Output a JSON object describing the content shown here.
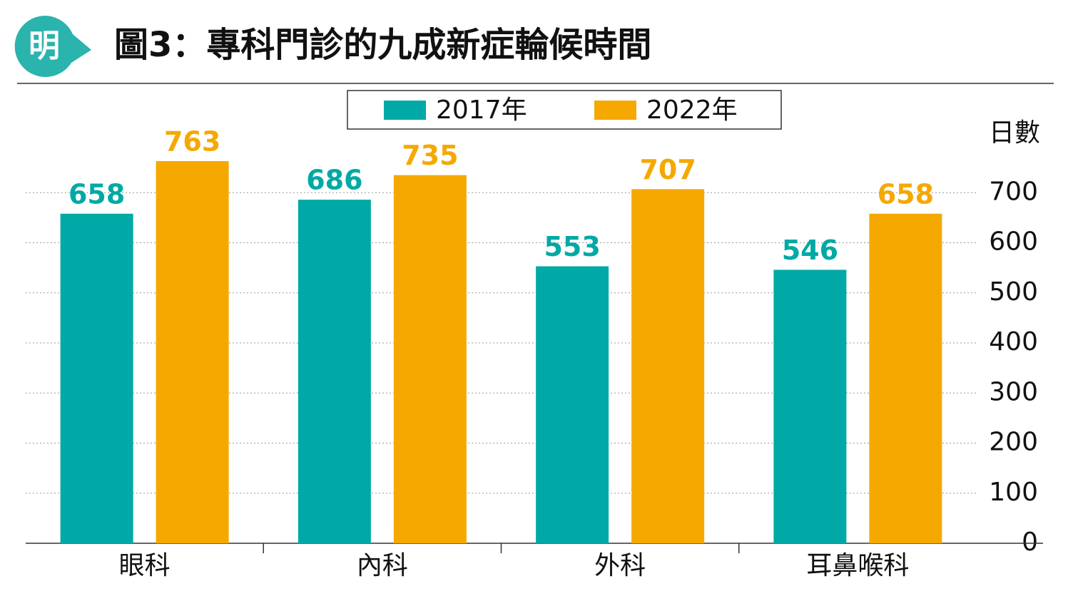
{
  "chart_data": {
    "type": "bar",
    "logo": "明",
    "title": "圖3：專科門診的九成新症輪候時間",
    "y_label": "日數",
    "categories": [
      "眼科",
      "內科",
      "外科",
      "耳鼻喉科"
    ],
    "series": [
      {
        "name": "2017年",
        "color": "#00a9a5",
        "values": [
          658,
          686,
          553,
          546
        ]
      },
      {
        "name": "2022年",
        "color": "#f5a800",
        "values": [
          763,
          735,
          707,
          658
        ]
      }
    ],
    "ylim": [
      0,
      800
    ],
    "yticks": [
      0,
      100,
      200,
      300,
      400,
      500,
      600,
      700
    ],
    "grid": true,
    "y_axis_side": "right",
    "legend": "top"
  }
}
